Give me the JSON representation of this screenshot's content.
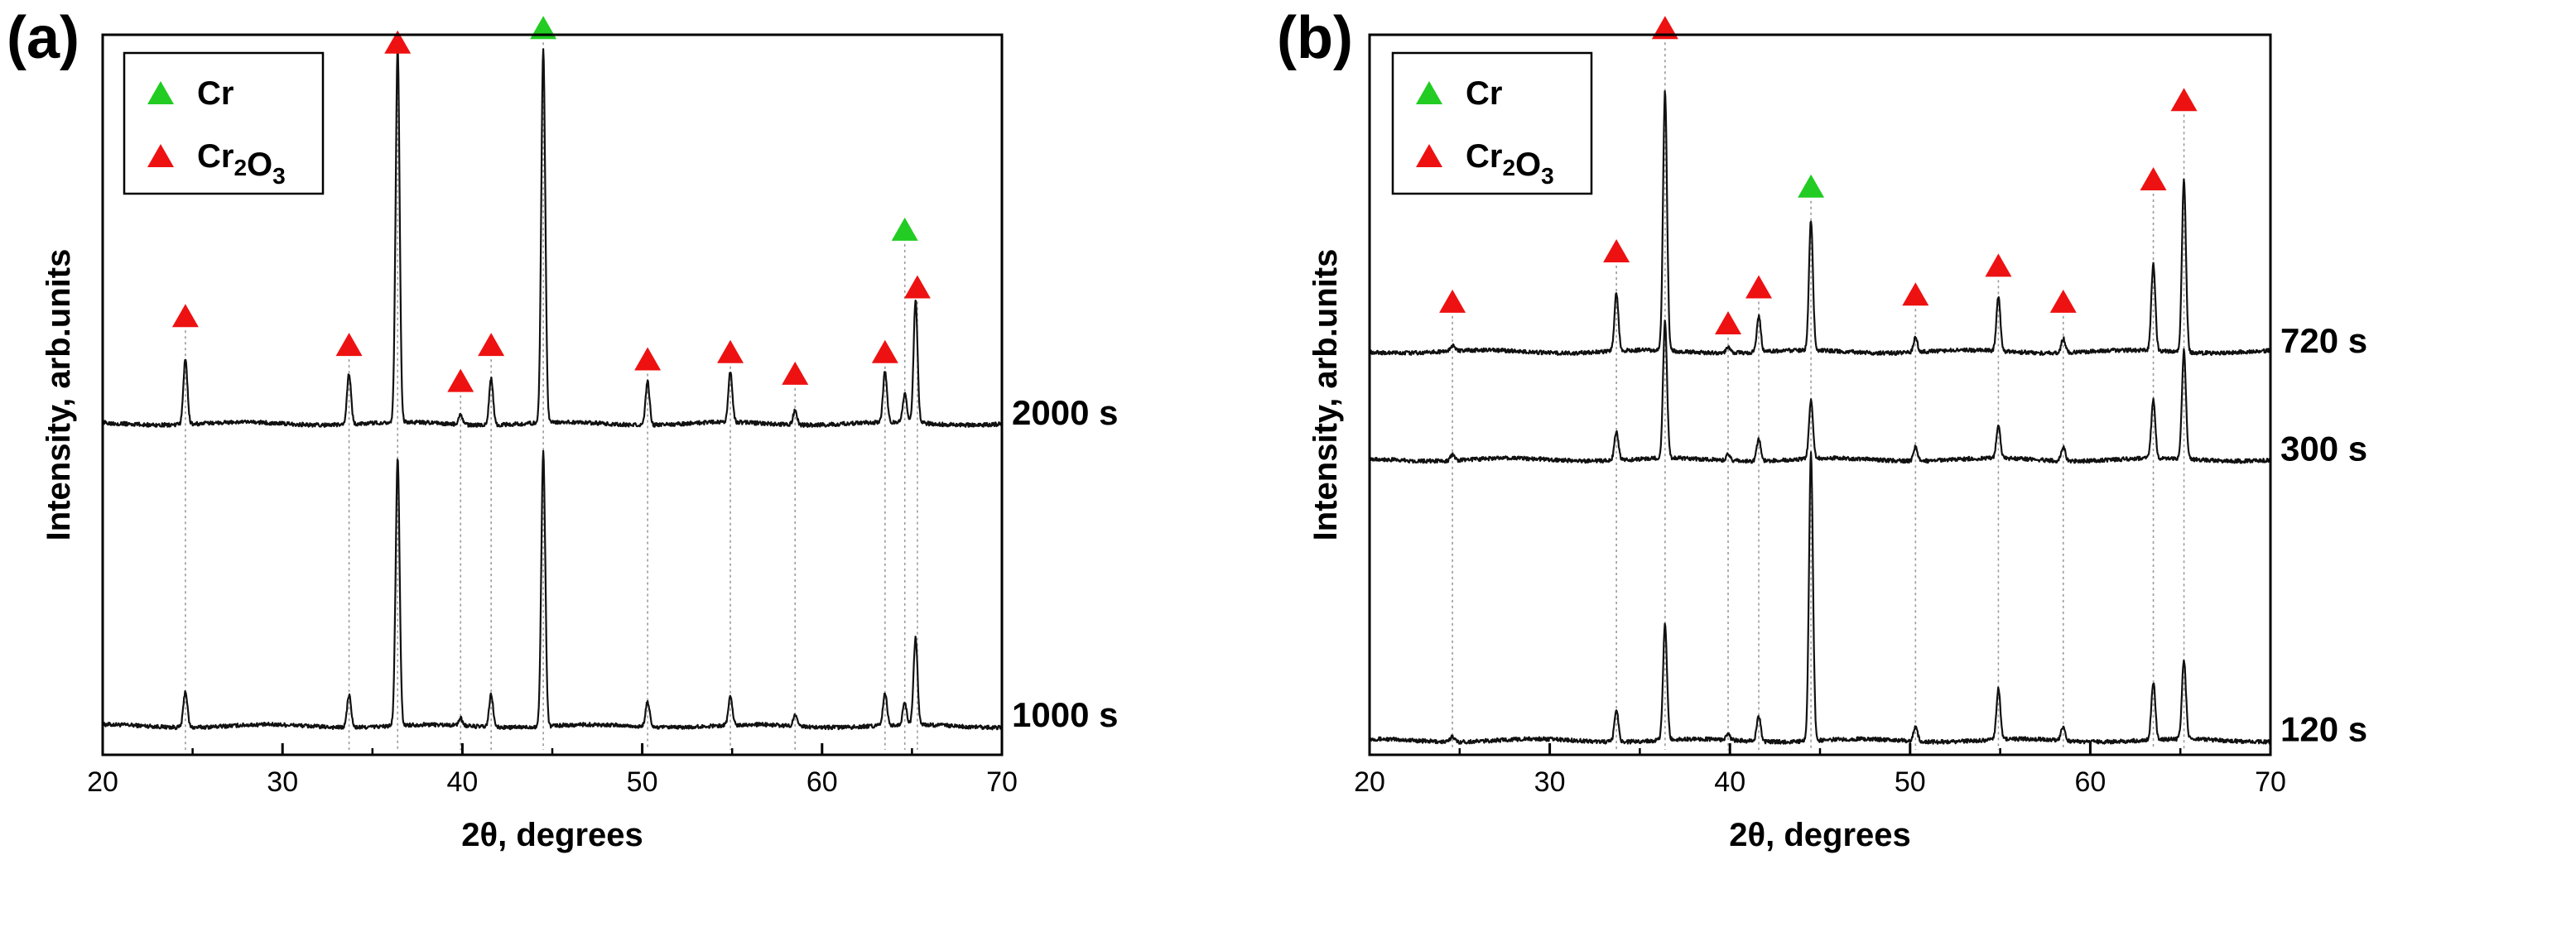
{
  "colors": {
    "cr": "#22cc22",
    "cr2o3": "#ee1111",
    "trace": "#111111",
    "guide": "#9a9a9a"
  },
  "chart_data": [
    {
      "type": "line",
      "panel_label": "(a)",
      "title": "",
      "xlabel": "2θ, degrees",
      "ylabel": "Intensity, arb.units",
      "xlim": [
        20,
        70
      ],
      "xticks": [
        "20",
        "30",
        "40",
        "50",
        "60",
        "70"
      ],
      "ylim": [
        0,
        100
      ],
      "legend": {
        "position": "top-left",
        "entries": [
          {
            "name": "Cr",
            "base": "Cr",
            "sub": [],
            "color": "#22cc22"
          },
          {
            "name": "Cr2O3",
            "base": "Cr",
            "sub": [
              "2",
              "O",
              "3"
            ],
            "color": "#ee1111"
          }
        ]
      },
      "series": [
        {
          "name": "1000 s",
          "label": "1000 s",
          "baseline": 4,
          "peaks": [
            [
              24.6,
              5
            ],
            [
              33.7,
              4.5
            ],
            [
              36.4,
              37
            ],
            [
              39.9,
              1
            ],
            [
              41.6,
              4.5
            ],
            [
              44.5,
              38
            ],
            [
              50.3,
              3.5
            ],
            [
              54.9,
              4
            ],
            [
              58.5,
              1.5
            ],
            [
              63.5,
              4.5
            ],
            [
              64.6,
              3
            ],
            [
              65.2,
              12
            ]
          ]
        },
        {
          "name": "2000 s",
          "label": "2000 s",
          "baseline": 46,
          "peaks": [
            [
              24.6,
              9
            ],
            [
              33.7,
              7
            ],
            [
              36.4,
              52
            ],
            [
              39.9,
              1.5
            ],
            [
              41.6,
              6.5
            ],
            [
              44.5,
              52
            ],
            [
              50.3,
              6
            ],
            [
              54.9,
              7
            ],
            [
              58.5,
              2
            ],
            [
              63.5,
              7
            ],
            [
              64.6,
              4
            ],
            [
              65.2,
              17
            ]
          ]
        }
      ],
      "reflections": [
        {
          "phase": "Cr2O3",
          "x": 24.6,
          "y": 61
        },
        {
          "phase": "Cr2O3",
          "x": 33.7,
          "y": 57
        },
        {
          "phase": "Cr2O3",
          "x": 36.4,
          "y": 99
        },
        {
          "phase": "Cr2O3",
          "x": 39.9,
          "y": 52
        },
        {
          "phase": "Cr2O3",
          "x": 41.6,
          "y": 57
        },
        {
          "phase": "Cr",
          "x": 44.5,
          "y": 101
        },
        {
          "phase": "Cr2O3",
          "x": 50.3,
          "y": 55
        },
        {
          "phase": "Cr2O3",
          "x": 54.9,
          "y": 56
        },
        {
          "phase": "Cr2O3",
          "x": 58.5,
          "y": 53
        },
        {
          "phase": "Cr2O3",
          "x": 63.5,
          "y": 56
        },
        {
          "phase": "Cr",
          "x": 64.6,
          "y": 73
        },
        {
          "phase": "Cr2O3",
          "x": 65.3,
          "y": 65
        }
      ]
    },
    {
      "type": "line",
      "panel_label": "(b)",
      "title": "",
      "xlabel": "2θ, degrees",
      "ylabel": "Intensity, arb.units",
      "xlim": [
        20,
        70
      ],
      "xticks": [
        "20",
        "30",
        "40",
        "50",
        "60",
        "70"
      ],
      "ylim": [
        0,
        100
      ],
      "legend": {
        "position": "top-left",
        "entries": [
          {
            "name": "Cr",
            "base": "Cr",
            "sub": [],
            "color": "#22cc22"
          },
          {
            "name": "Cr2O3",
            "base": "Cr",
            "sub": [
              "2",
              "O",
              "3"
            ],
            "color": "#ee1111"
          }
        ]
      },
      "series": [
        {
          "name": "120 s",
          "label": "120 s",
          "baseline": 2,
          "peaks": [
            [
              24.6,
              0.8
            ],
            [
              33.7,
              4.5
            ],
            [
              36.4,
              16
            ],
            [
              39.9,
              0.8
            ],
            [
              41.6,
              3.5
            ],
            [
              44.5,
              40
            ],
            [
              50.3,
              2
            ],
            [
              54.9,
              7
            ],
            [
              58.5,
              2
            ],
            [
              63.5,
              8
            ],
            [
              65.2,
              11
            ]
          ]
        },
        {
          "name": "300 s",
          "label": "300 s",
          "baseline": 41,
          "peaks": [
            [
              24.6,
              0.8
            ],
            [
              33.7,
              4
            ],
            [
              36.4,
              19
            ],
            [
              39.9,
              0.8
            ],
            [
              41.6,
              3
            ],
            [
              44.5,
              8
            ],
            [
              50.3,
              2
            ],
            [
              54.9,
              4.5
            ],
            [
              58.5,
              2
            ],
            [
              63.5,
              8
            ],
            [
              65.2,
              15
            ]
          ]
        },
        {
          "name": "720 s",
          "label": "720 s",
          "baseline": 56,
          "peaks": [
            [
              24.6,
              0.8
            ],
            [
              33.7,
              8
            ],
            [
              36.4,
              36
            ],
            [
              39.9,
              0.8
            ],
            [
              41.6,
              5
            ],
            [
              44.5,
              18
            ],
            [
              50.3,
              2
            ],
            [
              54.9,
              7.5
            ],
            [
              58.5,
              2
            ],
            [
              63.5,
              12
            ],
            [
              65.2,
              24
            ]
          ]
        }
      ],
      "reflections": [
        {
          "phase": "Cr2O3",
          "x": 24.6,
          "y": 63
        },
        {
          "phase": "Cr2O3",
          "x": 33.7,
          "y": 70
        },
        {
          "phase": "Cr2O3",
          "x": 36.4,
          "y": 101
        },
        {
          "phase": "Cr2O3",
          "x": 39.9,
          "y": 60
        },
        {
          "phase": "Cr2O3",
          "x": 41.6,
          "y": 65
        },
        {
          "phase": "Cr",
          "x": 44.5,
          "y": 79
        },
        {
          "phase": "Cr2O3",
          "x": 50.3,
          "y": 64
        },
        {
          "phase": "Cr2O3",
          "x": 54.9,
          "y": 68
        },
        {
          "phase": "Cr2O3",
          "x": 58.5,
          "y": 63
        },
        {
          "phase": "Cr2O3",
          "x": 63.5,
          "y": 80
        },
        {
          "phase": "Cr2O3",
          "x": 65.2,
          "y": 91
        }
      ]
    }
  ]
}
